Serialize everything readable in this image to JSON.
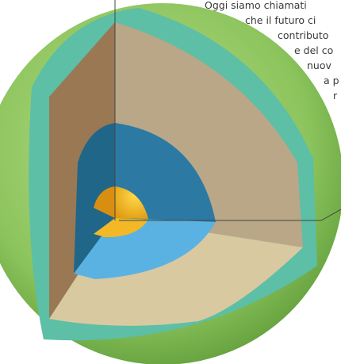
{
  "text": {
    "lines": [
      "Oggi siamo chiamati",
      "che il futuro ci",
      "contributo",
      "e del co",
      "nuov",
      "a p",
      "r"
    ]
  }
}
